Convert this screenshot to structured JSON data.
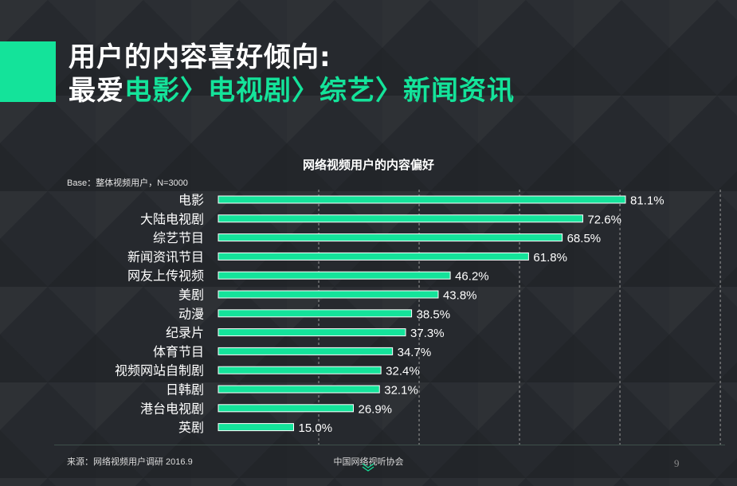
{
  "header": {
    "line1": "用户的内容喜好倾向:",
    "line2_prefix": "最爱",
    "line2_highlight": "电影〉电视剧〉综艺〉新闻资讯"
  },
  "base_note": "Base：整体视频用户，N=3000",
  "footer": {
    "source": "来源：网络视频用户调研   2016.9",
    "org": "中国网络视听协会",
    "page_number": "9"
  },
  "colors": {
    "accent": "#14e39a",
    "bar": "#14e39a",
    "background": "#26292e"
  },
  "chart_data": {
    "type": "bar",
    "orientation": "horizontal",
    "title": "网络视频用户的内容偏好",
    "categories": [
      "电影",
      "大陆电视剧",
      "综艺节目",
      "新闻资讯节目",
      "网友上传视频",
      "美剧",
      "动漫",
      "纪录片",
      "体育节目",
      "视频网站自制剧",
      "日韩剧",
      "港台电视剧",
      "英剧"
    ],
    "values": [
      81.1,
      72.6,
      68.5,
      61.8,
      46.2,
      43.8,
      38.5,
      37.3,
      34.7,
      32.4,
      32.1,
      26.9,
      15.0
    ],
    "value_labels": [
      "81.1%",
      "72.6%",
      "68.5%",
      "61.8%",
      "46.2%",
      "43.8%",
      "38.5%",
      "37.3%",
      "34.7%",
      "32.4%",
      "32.1%",
      "26.9%",
      "15.0%"
    ],
    "xlim": [
      0,
      100
    ],
    "grid": "vertical dashed",
    "legend": "none"
  }
}
